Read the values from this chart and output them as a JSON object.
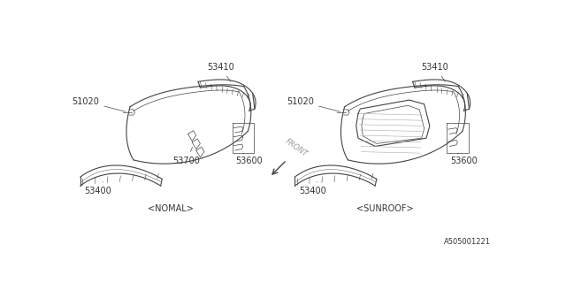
{
  "bg_color": "#ffffff",
  "line_color": "#444444",
  "text_color": "#333333",
  "fig_width": 6.4,
  "fig_height": 3.2,
  "dpi": 100,
  "caption_left": "<NOMAL>",
  "caption_right": "<SUNROOF>",
  "front_label": "FRONT",
  "diagram_code": "A505001221"
}
